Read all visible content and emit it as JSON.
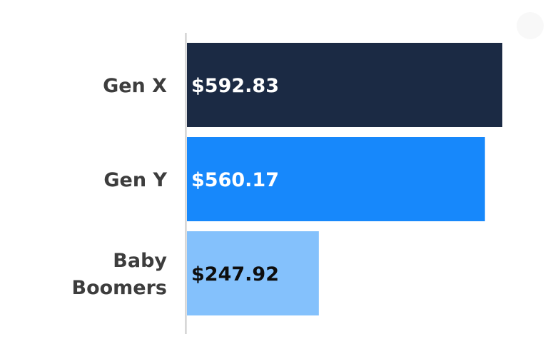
{
  "chart_data": {
    "type": "bar",
    "orientation": "horizontal",
    "categories": [
      "Gen X",
      "Gen Y",
      "Baby Boomers"
    ],
    "category_lines": [
      [
        "Gen X"
      ],
      [
        "Gen Y"
      ],
      [
        "Baby",
        "Boomers"
      ]
    ],
    "values": [
      592.83,
      560.17,
      247.92
    ],
    "value_labels": [
      "$592.83",
      "$560.17",
      "$247.92"
    ],
    "bar_colors": [
      "#1b2a44",
      "#1788fb",
      "#84c1fc"
    ],
    "label_colors": [
      "#ffffff",
      "#ffffff",
      "#0d0d0d"
    ],
    "title": "",
    "xlabel": "",
    "ylabel": "",
    "xlim": [
      0,
      600
    ],
    "grid": false,
    "legend": "none"
  }
}
